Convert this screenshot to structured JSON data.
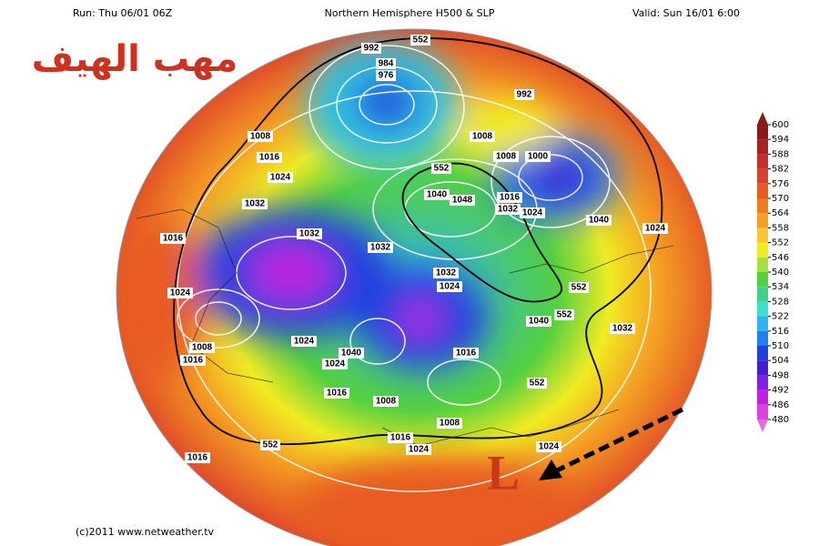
{
  "header": {
    "run": "Run: Thu 06/01 06Z",
    "title": "Northern Hemisphere H500 & SLP",
    "valid": "Valid: Sun 16/01 6:00"
  },
  "overlay_title": "مهب الهيف",
  "colorbar": {
    "ticks": [
      600,
      594,
      588,
      582,
      576,
      570,
      564,
      558,
      552,
      546,
      540,
      534,
      528,
      522,
      516,
      510,
      504,
      498,
      492,
      486,
      480
    ],
    "colors": [
      "#8b1a1a",
      "#a82222",
      "#c4302a",
      "#d84232",
      "#e85c22",
      "#f07c22",
      "#f5a024",
      "#f8c832",
      "#f0ec22",
      "#a8e040",
      "#54d040",
      "#40d08c",
      "#40dcd0",
      "#30b4f0",
      "#2080f0",
      "#2040e0",
      "#4020d0",
      "#8020e0",
      "#c020e0",
      "#e040e0",
      "#e070d8"
    ]
  },
  "contour_labels": [
    992,
    552,
    984,
    976,
    992,
    1008,
    1008,
    1016,
    1008,
    1000,
    552,
    1024,
    1040,
    1048,
    1016,
    1032,
    1032,
    1024,
    1040,
    1024,
    1016,
    1032,
    1032,
    1032,
    1024,
    552,
    1024,
    552,
    1040,
    1032,
    1024,
    1040,
    1016,
    1008,
    1016,
    1024,
    1016,
    1008,
    552,
    1008,
    1016,
    1024,
    552,
    1024,
    1016
  ],
  "marker": "L",
  "footer": "(c)2011 www.netweather.tv"
}
